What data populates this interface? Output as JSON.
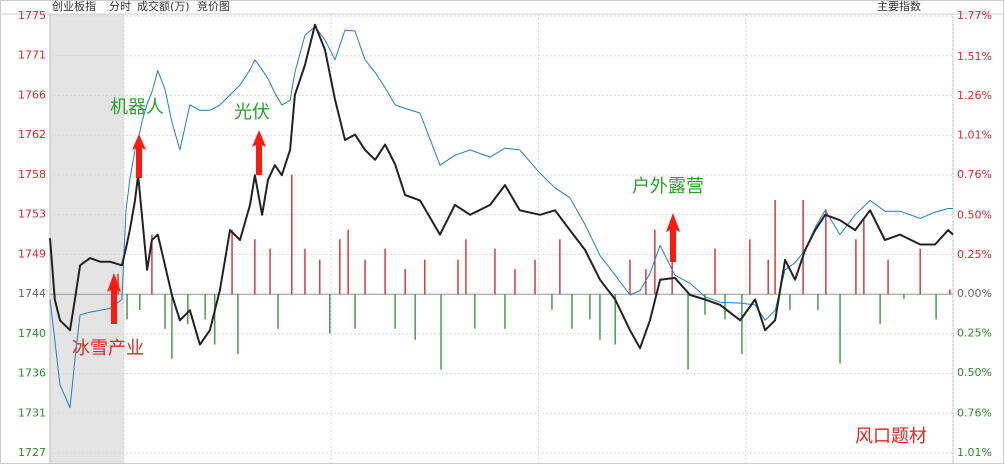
{
  "chart_data": {
    "type": "line",
    "header": {
      "title": "创业板指",
      "mode": "分时",
      "measure": "成交额(万)",
      "auction": "竞价图",
      "menu": "主要指数"
    },
    "xlim": [
      -21.4,
      240
    ],
    "xticks": [
      0,
      60,
      120,
      180,
      240
    ],
    "ylim": [
      1726.77,
      1775.26
    ],
    "yticks": [
      {
        "value": 1775.26,
        "label": "1775"
      },
      {
        "value": 1770.85,
        "label": "1771"
      },
      {
        "value": 1766.44,
        "label": "1766"
      },
      {
        "value": 1762.03,
        "label": "1762"
      },
      {
        "value": 1757.62,
        "label": "1758"
      },
      {
        "value": 1753.22,
        "label": "1753"
      },
      {
        "value": 1748.81,
        "label": "1749"
      },
      {
        "value": 1744.4,
        "label": "1744"
      },
      {
        "value": 1739.99,
        "label": "1740"
      },
      {
        "value": 1735.58,
        "label": "1736"
      },
      {
        "value": 1731.18,
        "label": "1731"
      },
      {
        "value": 1726.77,
        "label": "1727"
      }
    ],
    "y2lim": [
      -1.01,
      1.77
    ],
    "y2ticks": [
      {
        "value": 1.77,
        "label": "1.77%"
      },
      {
        "value": 1.51,
        "label": "1.51%"
      },
      {
        "value": 1.26,
        "label": "1.26%"
      },
      {
        "value": 1.01,
        "label": "1.01%"
      },
      {
        "value": 0.76,
        "label": "0.76%"
      },
      {
        "value": 0.5,
        "label": "0.50%"
      },
      {
        "value": 0.25,
        "label": "0.25%"
      },
      {
        "value": 0,
        "label": "0.00%"
      },
      {
        "value": -0.25,
        "label": "0.25%"
      },
      {
        "value": -0.5,
        "label": "0.50%"
      },
      {
        "value": -0.76,
        "label": "0.76%"
      },
      {
        "value": -1.01,
        "label": "1.01%"
      }
    ],
    "grid": true,
    "x": [
      -21.4,
      -20.0,
      -18.5,
      -15.6,
      -14.2,
      -12.7,
      -9.8,
      -6.9,
      -4.1,
      -0.6,
      0.6,
      1.7,
      3.2,
      4.1,
      5.2,
      6.7,
      8.1,
      9.8,
      11.9,
      13.9,
      16.2,
      19.1,
      22.0,
      24.9,
      27.8,
      30.7,
      33.6,
      36.5,
      37.9,
      40.0,
      41.7,
      43.7,
      45.7,
      48.1,
      49.5,
      52.4,
      55.3,
      58.2,
      61.1,
      64.0,
      66.9,
      69.8,
      72.7,
      75.6,
      78.5,
      81.4,
      85.7,
      91.5,
      95.8,
      100.2,
      106.0,
      110.3,
      114.6,
      120.5,
      124.8,
      129.1,
      133.5,
      137.8,
      142.2,
      146.5,
      149.4,
      152.3,
      155.2,
      159.5,
      163.9,
      168.2,
      172.6,
      178.4,
      182.7,
      185.6,
      188.5,
      191.4,
      194.3,
      197.2,
      200.1,
      203.0,
      207.3,
      211.7,
      216.0,
      220.3,
      224.7,
      230.5,
      234.8,
      238.6,
      240.0
    ],
    "series": [
      {
        "color": "#1f7fc4",
        "width": 1,
        "values": [
          1743.8,
          1739.3,
          1734.3,
          1731.8,
          1737.1,
          1742.1,
          1742.4,
          1742.6,
          1742.8,
          1743.8,
          1753.7,
          1757.1,
          1760.4,
          1761.5,
          1763.5,
          1765.5,
          1766.8,
          1769.2,
          1767.1,
          1763.5,
          1760.4,
          1765.4,
          1764.8,
          1764.8,
          1765.4,
          1766.5,
          1767.6,
          1769.3,
          1770.4,
          1769.3,
          1768.3,
          1766.7,
          1765.4,
          1765.9,
          1769.0,
          1773.1,
          1774.1,
          1772.6,
          1770.4,
          1773.7,
          1773.6,
          1770.4,
          1769.0,
          1767.3,
          1765.4,
          1765.0,
          1764.5,
          1758.7,
          1759.8,
          1760.4,
          1759.6,
          1760.6,
          1760.4,
          1757.8,
          1756.2,
          1755.1,
          1752.1,
          1748.7,
          1746.5,
          1744.3,
          1744.8,
          1746.7,
          1749.8,
          1746.5,
          1745.6,
          1744.1,
          1743.5,
          1743.4,
          1743.2,
          1741.5,
          1742.6,
          1747.1,
          1747.9,
          1749.3,
          1751.8,
          1753.7,
          1751.0,
          1753.2,
          1754.8,
          1753.6,
          1753.6,
          1752.8,
          1753.5,
          1753.9,
          1753.9
        ]
      },
      {
        "color": "#222222",
        "width": 2,
        "values": [
          1750.6,
          1743.8,
          1741.5,
          1740.4,
          1743.8,
          1747.6,
          1748.4,
          1748.0,
          1748.0,
          1747.6,
          1749.5,
          1751.5,
          1754.8,
          1757.6,
          1753.2,
          1747.1,
          1750.4,
          1751.0,
          1747.6,
          1744.3,
          1741.5,
          1742.6,
          1738.8,
          1740.4,
          1744.9,
          1751.5,
          1750.4,
          1754.3,
          1757.6,
          1753.2,
          1757.1,
          1758.7,
          1757.6,
          1760.4,
          1766.5,
          1769.8,
          1774.3,
          1771.5,
          1766.0,
          1761.5,
          1762.1,
          1760.4,
          1759.3,
          1761.0,
          1758.8,
          1755.4,
          1754.8,
          1751.0,
          1754.3,
          1753.2,
          1754.3,
          1756.5,
          1753.7,
          1753.2,
          1753.7,
          1751.5,
          1749.3,
          1746.0,
          1743.8,
          1740.4,
          1738.4,
          1741.5,
          1746.0,
          1746.2,
          1744.3,
          1743.8,
          1743.2,
          1741.5,
          1743.8,
          1740.4,
          1741.5,
          1748.2,
          1746.0,
          1749.3,
          1751.5,
          1753.2,
          1752.6,
          1751.5,
          1753.7,
          1750.4,
          1751.0,
          1749.9,
          1749.9,
          1751.5,
          1751.0
        ]
      },
      {
        "type": "bar",
        "axis": "y2",
        "color": "#cc1f1f",
        "negative_color": "#2e8b2e",
        "x": [
          -1.7,
          0.9,
          4.6,
          8.1,
          11.9,
          13.9,
          18.5,
          23.5,
          26.3,
          31.3,
          33.0,
          37.9,
          42.3,
          44.6,
          48.6,
          52.4,
          56.7,
          59.6,
          62.5,
          64.9,
          66.9,
          69.8,
          75.6,
          78.5,
          81.4,
          84.3,
          87.1,
          91.8,
          96.7,
          99.0,
          101.6,
          107.4,
          110.3,
          113.2,
          119.0,
          123.9,
          126.2,
          129.7,
          134.9,
          137.8,
          142.2,
          146.5,
          151.1,
          153.7,
          158.7,
          163.3,
          168.2,
          171.1,
          174.0,
          178.9,
          181.2,
          186.5,
          188.5,
          192.8,
          196.6,
          200.9,
          203.2,
          207.3,
          211.9,
          214.2,
          218.9,
          221.2,
          225.8,
          230.5,
          235.1,
          239.1
        ],
        "values": [
          0.13,
          -0.16,
          -0.1,
          0.38,
          -0.22,
          -0.41,
          -0.19,
          -0.16,
          -0.32,
          0.41,
          -0.38,
          0.35,
          0.29,
          -0.22,
          0.76,
          0.29,
          0.22,
          -0.25,
          0.35,
          0.41,
          -0.22,
          0.22,
          0.29,
          -0.22,
          0.16,
          -0.29,
          0.22,
          -0.48,
          0.22,
          0.35,
          -0.22,
          0.29,
          -0.22,
          0.16,
          0.22,
          -0.1,
          0.35,
          -0.22,
          -0.16,
          -0.29,
          -0.32,
          0.22,
          0.16,
          0.41,
          0.22,
          -0.48,
          -0.13,
          0.29,
          -0.16,
          -0.38,
          0.35,
          0.22,
          0.6,
          -0.1,
          0.6,
          -0.1,
          0.54,
          -0.44,
          0.35,
          0.48,
          -0.19,
          0.22,
          -0.03,
          0.29,
          -0.16,
          0.03
        ]
      }
    ],
    "annotations": [
      {
        "text": "机器人",
        "color": "#2a9d2a"
      },
      {
        "text": "光伏",
        "color": "#2a9d2a"
      },
      {
        "text": "冰雪产业",
        "color": "#e0281e"
      },
      {
        "text": "户外露营",
        "color": "#2a9d2a"
      },
      {
        "text": "风口题材",
        "color": "#e0281e"
      }
    ]
  }
}
